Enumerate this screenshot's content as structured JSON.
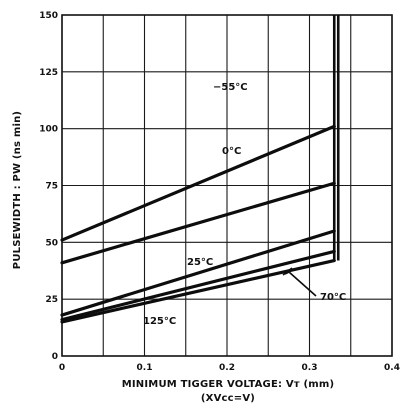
{
  "chart_data": {
    "type": "line",
    "title": "",
    "xlabel": "MINIMUM TIGGER VOLTAGE: Vᴛ (mm)",
    "xlabel_sub": "(XVcc=V)",
    "ylabel": "PULSEWIDTH : PW  (ns min)",
    "xlim": [
      0,
      0.4
    ],
    "ylim": [
      0,
      150
    ],
    "x_ticks": [
      0,
      0.1,
      0.2,
      0.3,
      0.4
    ],
    "x_tick_labels": [
      "0",
      "0.1",
      "0.2",
      "0.3",
      "0.4"
    ],
    "y_ticks": [
      0,
      25,
      50,
      75,
      100,
      125,
      150
    ],
    "y_tick_labels": [
      "0",
      "25",
      "50",
      "75",
      "100",
      "125",
      "150"
    ],
    "grid": true,
    "series": [
      {
        "name": "−55°C",
        "x": [
          0,
          0.33
        ],
        "y": [
          51,
          101
        ]
      },
      {
        "name": "0°C",
        "x": [
          0,
          0.33
        ],
        "y": [
          41,
          76
        ]
      },
      {
        "name": "25°C",
        "x": [
          0,
          0.33
        ],
        "y": [
          18,
          55
        ]
      },
      {
        "name": "",
        "x": [
          0,
          0.33
        ],
        "y": [
          16,
          46
        ]
      },
      {
        "name": "",
        "x": [
          0,
          0.33
        ],
        "y": [
          15,
          42
        ]
      }
    ],
    "boundary_x": 0.33,
    "annotations": [
      {
        "text": "−55°C"
      },
      {
        "text": "0°C"
      },
      {
        "text": "25°C"
      },
      {
        "text": "70°C"
      },
      {
        "text": "125°C"
      }
    ]
  }
}
